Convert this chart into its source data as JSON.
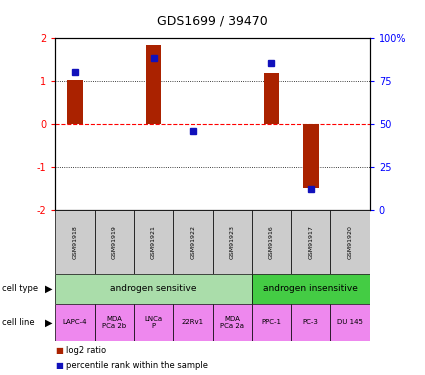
{
  "title": "GDS1699 / 39470",
  "samples": [
    "GSM91918",
    "GSM91919",
    "GSM91921",
    "GSM91922",
    "GSM91923",
    "GSM91916",
    "GSM91917",
    "GSM91920"
  ],
  "log2_ratio": [
    1.02,
    0.0,
    1.82,
    0.0,
    0.0,
    1.18,
    -1.48,
    0.0
  ],
  "percentile_rank": [
    80,
    0,
    88,
    46,
    0,
    85,
    12,
    0
  ],
  "show_percentile": [
    true,
    false,
    true,
    true,
    false,
    true,
    true,
    false
  ],
  "show_log2": [
    true,
    false,
    true,
    false,
    false,
    true,
    true,
    false
  ],
  "cell_type_groups": [
    {
      "label": "androgen sensitive",
      "start": 0,
      "end": 5,
      "color": "#AADDAA"
    },
    {
      "label": "androgen insensitive",
      "start": 5,
      "end": 8,
      "color": "#44CC44"
    }
  ],
  "cell_lines": [
    "LAPC-4",
    "MDA\nPCa 2b",
    "LNCa\nP",
    "22Rv1",
    "MDA\nPCa 2a",
    "PPC-1",
    "PC-3",
    "DU 145"
  ],
  "cell_line_color": "#EE88EE",
  "sample_bg_color": "#CCCCCC",
  "bar_color": "#AA2200",
  "dot_color": "#1111BB",
  "ylim": [
    -2,
    2
  ],
  "y2lim": [
    0,
    100
  ],
  "yticks": [
    -2,
    -1,
    0,
    1,
    2
  ],
  "y2ticks": [
    0,
    25,
    50,
    75,
    100
  ],
  "y2tick_labels": [
    "0",
    "25",
    "50",
    "75",
    "100%"
  ],
  "legend_items": [
    {
      "label": "log2 ratio",
      "color": "#AA2200"
    },
    {
      "label": "percentile rank within the sample",
      "color": "#1111BB"
    }
  ]
}
